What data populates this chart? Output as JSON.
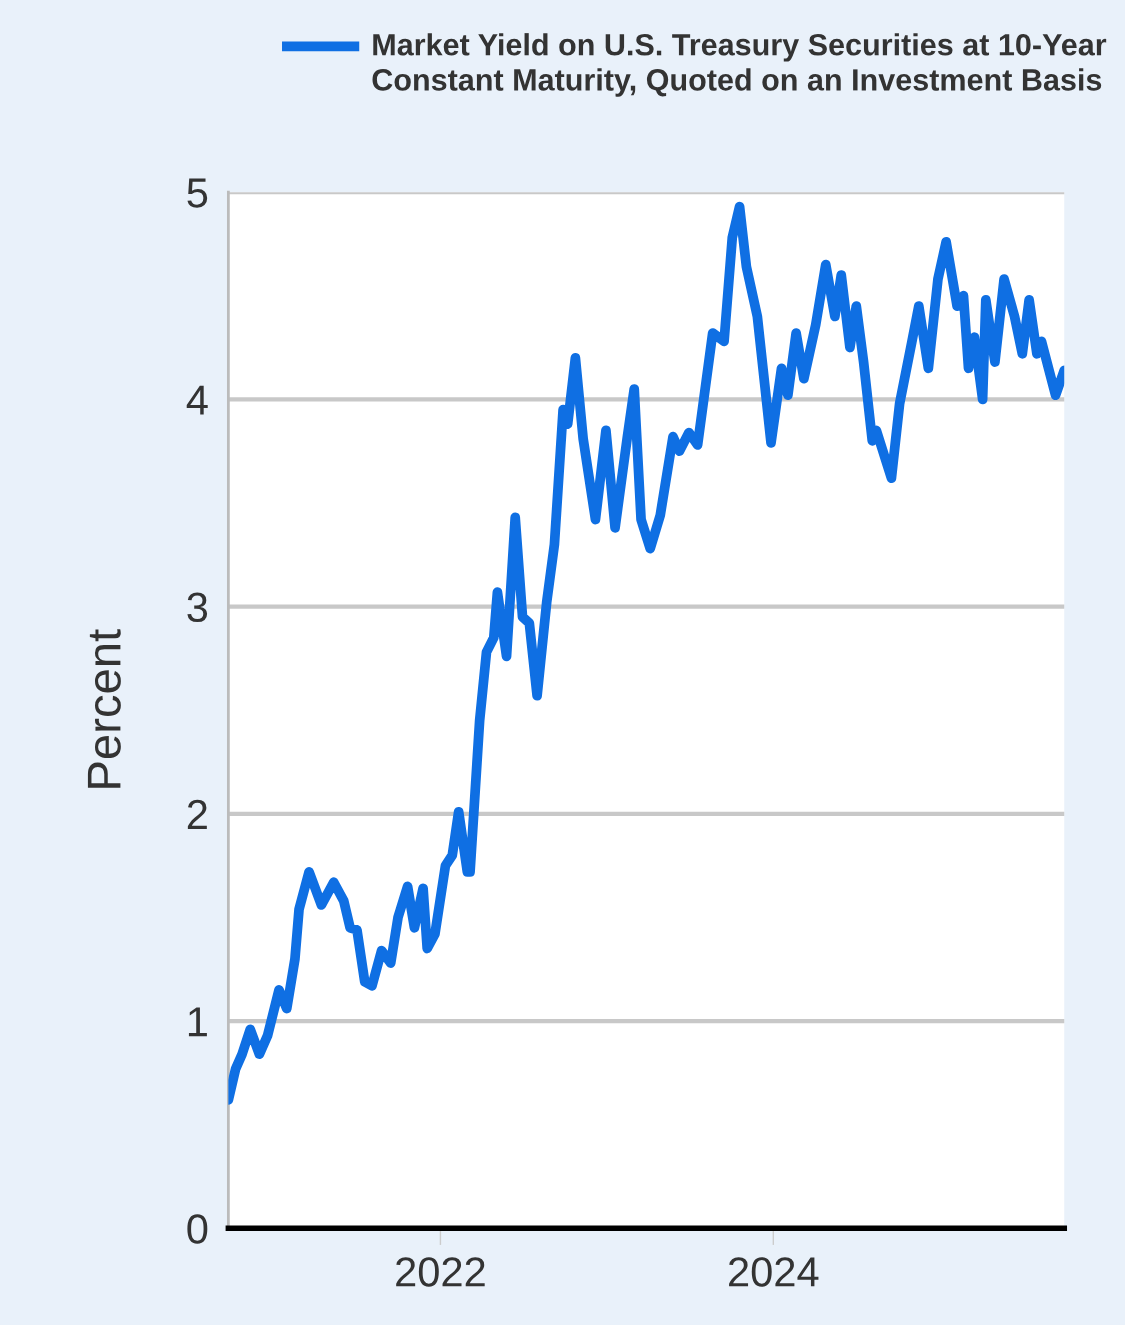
{
  "chart_data": {
    "type": "line",
    "ylabel": "Percent",
    "legend": "top",
    "grid": "y",
    "line_style": "solid",
    "marker": "none",
    "xlim": [
      "2020-09-23",
      "2025-09-30"
    ],
    "ylim": [
      0,
      5
    ],
    "xticks": [
      {
        "value": "2022-01-01",
        "label": "2022"
      },
      {
        "value": "2024-01-01",
        "label": "2024"
      }
    ],
    "yticks": [
      0,
      1,
      2,
      3,
      4,
      5
    ],
    "series": [
      {
        "name": "Market Yield on U.S. Treasury Securities at 10-Year Constant Maturity, Quoted on an Investment Basis",
        "color": "#0f6fe3",
        "x": [
          "2020-09-23",
          "2020-10-09",
          "2020-10-23",
          "2020-11-10",
          "2020-11-30",
          "2020-12-18",
          "2021-01-12",
          "2021-01-29",
          "2021-02-16",
          "2021-02-25",
          "2021-03-19",
          "2021-04-15",
          "2021-05-12",
          "2021-06-03",
          "2021-06-17",
          "2021-07-02",
          "2021-07-19",
          "2021-08-04",
          "2021-08-25",
          "2021-09-14",
          "2021-09-30",
          "2021-10-21",
          "2021-11-05",
          "2021-11-24",
          "2021-12-03",
          "2021-12-20",
          "2022-01-12",
          "2022-01-27",
          "2022-02-10",
          "2022-03-01",
          "2022-03-07",
          "2022-03-28",
          "2022-04-12",
          "2022-04-28",
          "2022-05-06",
          "2022-05-26",
          "2022-06-14",
          "2022-06-30",
          "2022-07-15",
          "2022-08-01",
          "2022-08-22",
          "2022-09-08",
          "2022-09-27",
          "2022-10-07",
          "2022-10-24",
          "2022-11-10",
          "2022-12-07",
          "2022-12-30",
          "2023-01-19",
          "2023-02-15",
          "2023-03-02",
          "2023-03-17",
          "2023-04-06",
          "2023-04-28",
          "2023-05-26",
          "2023-06-09",
          "2023-06-30",
          "2023-07-19",
          "2023-08-21",
          "2023-09-15",
          "2023-10-03",
          "2023-10-19",
          "2023-11-03",
          "2023-11-27",
          "2023-12-27",
          "2024-01-19",
          "2024-02-02",
          "2024-02-20",
          "2024-03-08",
          "2024-04-03",
          "2024-04-25",
          "2024-05-15",
          "2024-05-29",
          "2024-06-17",
          "2024-07-01",
          "2024-07-17",
          "2024-08-05",
          "2024-08-14",
          "2024-09-16",
          "2024-10-04",
          "2024-10-31",
          "2024-11-15",
          "2024-12-06",
          "2024-12-27",
          "2025-01-14",
          "2025-02-07",
          "2025-02-21",
          "2025-03-04",
          "2025-03-17",
          "2025-04-04",
          "2025-04-11",
          "2025-05-01",
          "2025-05-21",
          "2025-06-13",
          "2025-06-30",
          "2025-07-15",
          "2025-08-01",
          "2025-08-11",
          "2025-09-11",
          "2025-09-30"
        ],
        "values": [
          0.62,
          0.77,
          0.84,
          0.96,
          0.84,
          0.93,
          1.15,
          1.06,
          1.3,
          1.54,
          1.72,
          1.56,
          1.67,
          1.58,
          1.45,
          1.44,
          1.19,
          1.17,
          1.34,
          1.28,
          1.5,
          1.65,
          1.45,
          1.64,
          1.35,
          1.42,
          1.75,
          1.8,
          2.01,
          1.72,
          1.72,
          2.45,
          2.78,
          2.85,
          3.07,
          2.76,
          3.43,
          2.95,
          2.92,
          2.57,
          3.02,
          3.3,
          3.95,
          3.88,
          4.2,
          3.81,
          3.42,
          3.85,
          3.38,
          3.82,
          4.05,
          3.42,
          3.28,
          3.44,
          3.82,
          3.75,
          3.84,
          3.78,
          4.32,
          4.28,
          4.78,
          4.93,
          4.64,
          4.4,
          3.79,
          4.15,
          4.02,
          4.32,
          4.1,
          4.36,
          4.65,
          4.4,
          4.6,
          4.25,
          4.45,
          4.18,
          3.8,
          3.85,
          3.62,
          3.98,
          4.28,
          4.45,
          4.15,
          4.58,
          4.76,
          4.45,
          4.5,
          4.15,
          4.3,
          4.0,
          4.48,
          4.18,
          4.58,
          4.4,
          4.22,
          4.48,
          4.22,
          4.28,
          4.02,
          4.14
        ]
      }
    ]
  }
}
